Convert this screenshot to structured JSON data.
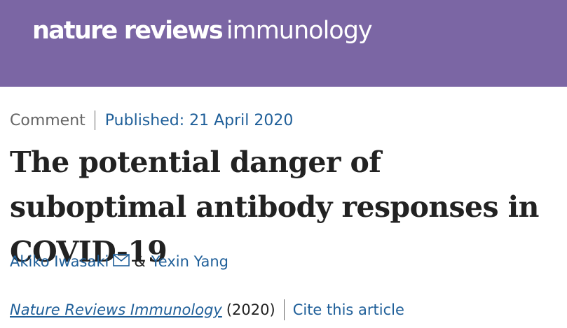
{
  "header": {
    "brand_bold": "nature reviews",
    "brand_light": "immunology",
    "background_color": "#7b66a4"
  },
  "article": {
    "type": "Comment",
    "published": "Published: 21 April 2020",
    "title": "The potential danger of suboptimal antibody responses in COVID-19",
    "authors": [
      {
        "name": "Akiko Iwasaki",
        "icon": "mail-icon"
      },
      {
        "name": "Yexin Yang"
      }
    ],
    "author_separator": "&",
    "journal": "Nature Reviews Immunology",
    "year": "(2020)",
    "cite_label": "Cite this article"
  },
  "colors": {
    "link": "#1f5f99",
    "text": "#222222",
    "muted": "#666666"
  }
}
